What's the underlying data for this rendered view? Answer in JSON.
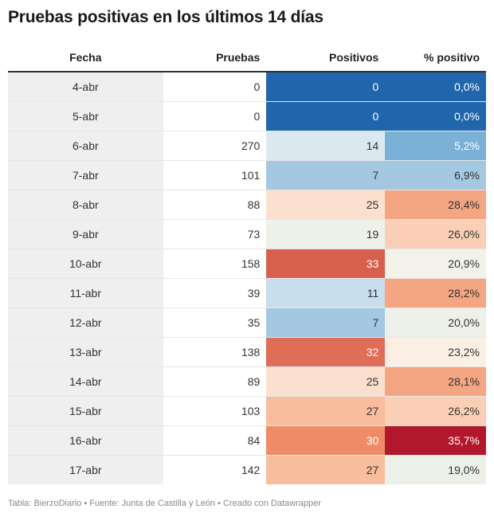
{
  "title": "Pruebas positivas en los últimos 14 días",
  "footer": "Tabla: BierzoDiario • Fuente: Junta de Castilla y León • Creado con Datawrapper",
  "chart_data": {
    "type": "table",
    "title": "Pruebas positivas en los últimos 14 días",
    "columns": [
      "Fecha",
      "Pruebas",
      "Positivos",
      "% positivo"
    ],
    "rows": [
      {
        "fecha": "4-abr",
        "pruebas": "0",
        "positivos": "0",
        "pct": "0,0%",
        "pos_color": "#2166ac",
        "pct_color": "#2166ac",
        "pos_text": "#ffffff",
        "pct_text": "#ffffff"
      },
      {
        "fecha": "5-abr",
        "pruebas": "0",
        "positivos": "0",
        "pct": "0,0%",
        "pos_color": "#2166ac",
        "pct_color": "#2166ac",
        "pos_text": "#ffffff",
        "pct_text": "#ffffff"
      },
      {
        "fecha": "6-abr",
        "pruebas": "270",
        "positivos": "14",
        "pct": "5,2%",
        "pos_color": "#dce8f0",
        "pct_color": "#7bb1d6",
        "pos_text": "#333333",
        "pct_text": "#ffffff"
      },
      {
        "fecha": "7-abr",
        "pruebas": "101",
        "positivos": "7",
        "pct": "6,9%",
        "pos_color": "#a4c8e1",
        "pct_color": "#a4c8e1",
        "pos_text": "#333333",
        "pct_text": "#333333"
      },
      {
        "fecha": "8-abr",
        "pruebas": "88",
        "positivos": "25",
        "pct": "28,4%",
        "pos_color": "#fbdfcf",
        "pct_color": "#f4a582",
        "pos_text": "#333333",
        "pct_text": "#333333"
      },
      {
        "fecha": "9-abr",
        "pruebas": "73",
        "positivos": "19",
        "pct": "26,0%",
        "pos_color": "#eef0ea",
        "pct_color": "#fbcfb5",
        "pos_text": "#333333",
        "pct_text": "#333333"
      },
      {
        "fecha": "10-abr",
        "pruebas": "158",
        "positivos": "33",
        "pct": "20,9%",
        "pos_color": "#d6604d",
        "pct_color": "#f2f2ea",
        "pos_text": "#ffffff",
        "pct_text": "#333333"
      },
      {
        "fecha": "11-abr",
        "pruebas": "39",
        "positivos": "11",
        "pct": "28,2%",
        "pos_color": "#c9deec",
        "pct_color": "#f4a582",
        "pos_text": "#333333",
        "pct_text": "#333333"
      },
      {
        "fecha": "12-abr",
        "pruebas": "35",
        "positivos": "7",
        "pct": "20,0%",
        "pos_color": "#a4c8e1",
        "pct_color": "#eef0ea",
        "pos_text": "#333333",
        "pct_text": "#333333"
      },
      {
        "fecha": "13-abr",
        "pruebas": "138",
        "positivos": "32",
        "pct": "23,2%",
        "pos_color": "#e06d57",
        "pct_color": "#fbeee2",
        "pos_text": "#ffffff",
        "pct_text": "#333333"
      },
      {
        "fecha": "14-abr",
        "pruebas": "89",
        "positivos": "25",
        "pct": "28,1%",
        "pos_color": "#fbdfcf",
        "pct_color": "#f4a582",
        "pos_text": "#333333",
        "pct_text": "#333333"
      },
      {
        "fecha": "15-abr",
        "pruebas": "103",
        "positivos": "27",
        "pct": "26,2%",
        "pos_color": "#f8bd9d",
        "pct_color": "#fbcfb5",
        "pos_text": "#333333",
        "pct_text": "#333333"
      },
      {
        "fecha": "16-abr",
        "pruebas": "84",
        "positivos": "30",
        "pct": "35,7%",
        "pos_color": "#ee8c67",
        "pct_color": "#b2182b",
        "pos_text": "#ffffff",
        "pct_text": "#ffffff"
      },
      {
        "fecha": "17-abr",
        "pruebas": "142",
        "positivos": "27",
        "pct": "19,0%",
        "pos_color": "#f8bd9d",
        "pct_color": "#ebf0e8",
        "pos_text": "#333333",
        "pct_text": "#333333"
      }
    ]
  }
}
